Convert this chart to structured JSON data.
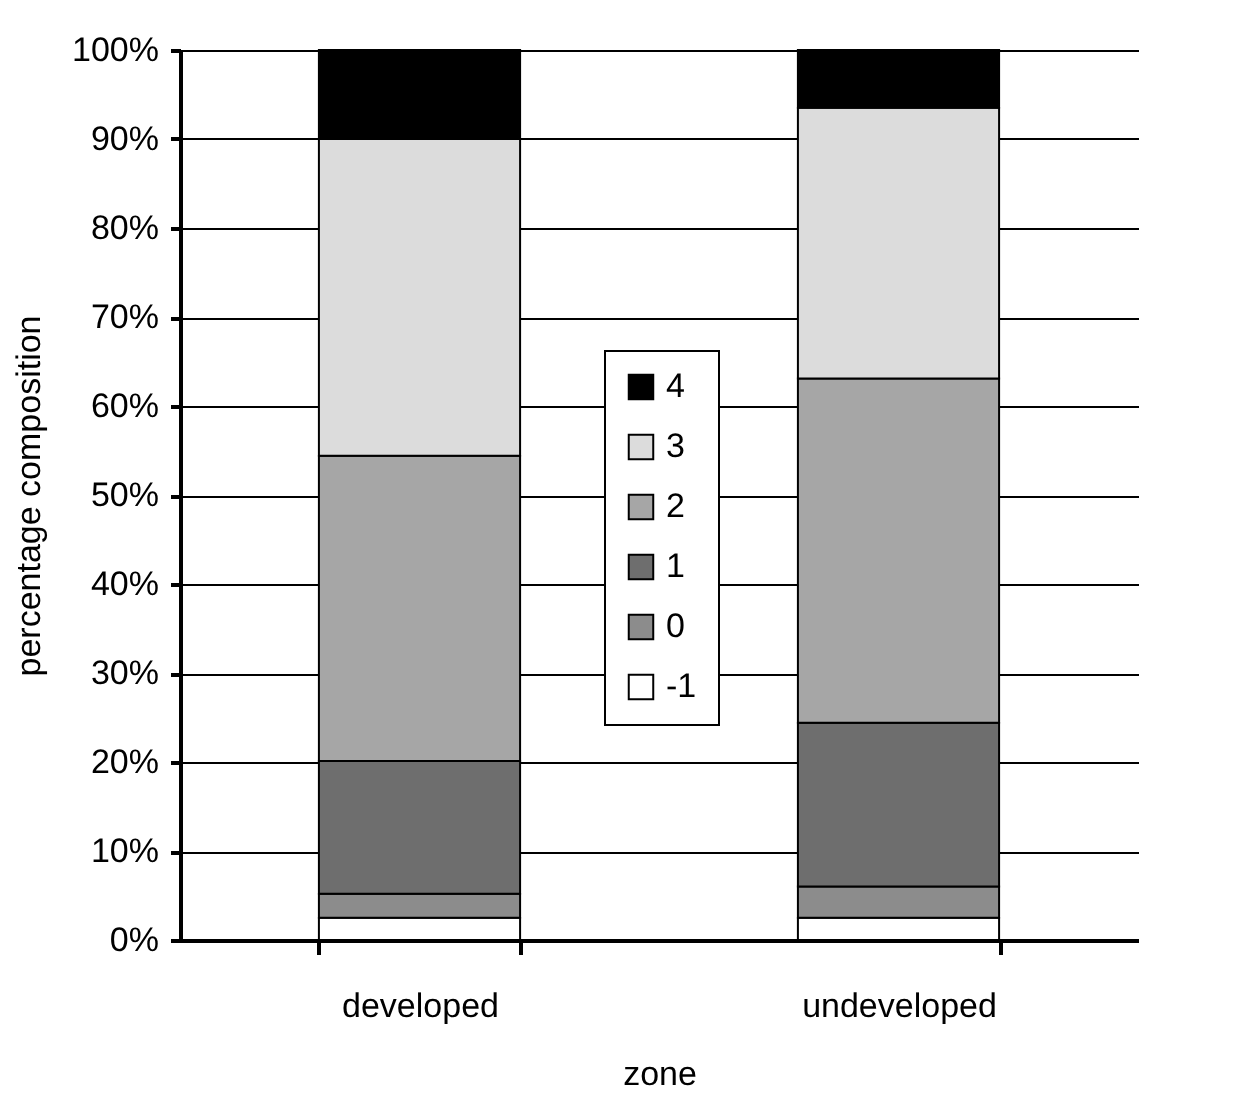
{
  "chart_data": {
    "type": "bar",
    "stacked": true,
    "xlabel": "zone",
    "ylabel": "percentage composition",
    "categories": [
      "developed",
      "undeveloped"
    ],
    "series": [
      {
        "name": "-1",
        "color": "#ffffff",
        "values": [
          2.5,
          2.5
        ]
      },
      {
        "name": "0",
        "color": "#8c8c8c",
        "values": [
          2.7,
          3.5
        ]
      },
      {
        "name": "1",
        "color": "#6e6e6e",
        "values": [
          14.9,
          18.4
        ]
      },
      {
        "name": "2",
        "color": "#a6a6a6",
        "values": [
          34.3,
          38.7
        ]
      },
      {
        "name": "3",
        "color": "#dcdcdc",
        "values": [
          35.6,
          30.4
        ]
      },
      {
        "name": "4",
        "color": "#000000",
        "values": [
          10,
          6.5
        ]
      }
    ],
    "ylim": [
      0,
      100
    ],
    "yticks": [
      {
        "value": 0,
        "label": "0%"
      },
      {
        "value": 10,
        "label": "10%"
      },
      {
        "value": 20,
        "label": "20%"
      },
      {
        "value": 30,
        "label": "30%"
      },
      {
        "value": 40,
        "label": "40%"
      },
      {
        "value": 50,
        "label": "50%"
      },
      {
        "value": 60,
        "label": "60%"
      },
      {
        "value": 70,
        "label": "70%"
      },
      {
        "value": 80,
        "label": "80%"
      },
      {
        "value": 90,
        "label": "90%"
      },
      {
        "value": 100,
        "label": "100%"
      }
    ],
    "grid": "y",
    "legend": "center"
  }
}
